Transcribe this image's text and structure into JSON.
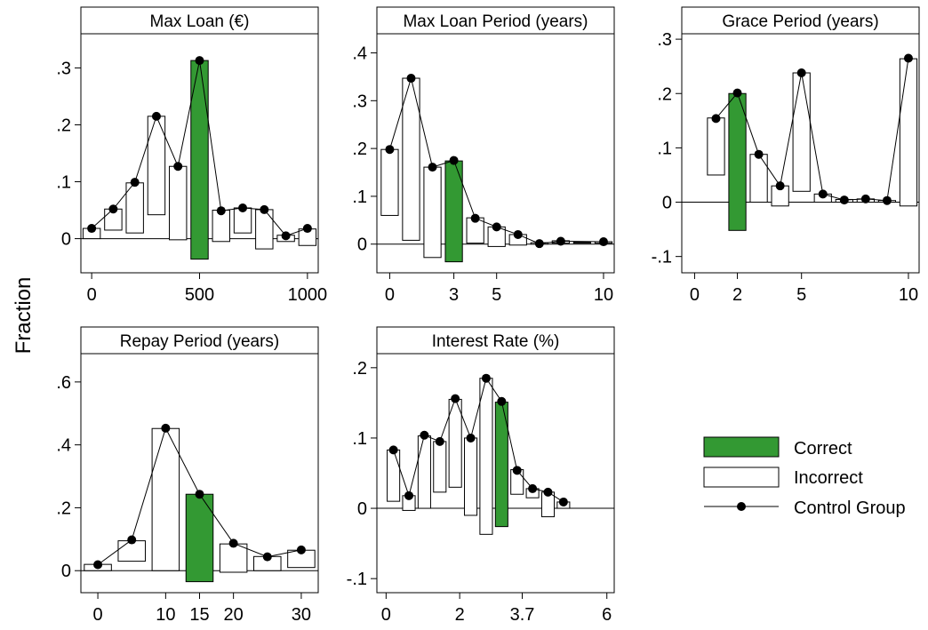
{
  "y_axis_label": "Fraction",
  "legend": {
    "correct": "Correct",
    "incorrect": "Incorrect",
    "control": "Control Group",
    "correct_color": "#339933"
  },
  "chart_data": [
    {
      "type": "bar",
      "title": "Max Loan (€)",
      "xlim": [
        -50,
        1050
      ],
      "ylim": [
        -0.06,
        0.36
      ],
      "xticks": [
        {
          "v": 0,
          "label": "0"
        },
        {
          "v": 500,
          "label": "500"
        },
        {
          "v": 1000,
          "label": "1000"
        }
      ],
      "yticks": [
        {
          "v": 0,
          "label": "0"
        },
        {
          "v": 0.1,
          "label": ".1"
        },
        {
          "v": 0.2,
          "label": ".2"
        },
        {
          "v": 0.3,
          "label": ".3"
        }
      ],
      "bar_width": 80,
      "bars": [
        {
          "x": 0,
          "bottom": 0.0,
          "top": 0.018,
          "correct": false
        },
        {
          "x": 100,
          "bottom": 0.015,
          "top": 0.052,
          "correct": false
        },
        {
          "x": 200,
          "bottom": 0.01,
          "top": 0.098,
          "correct": false
        },
        {
          "x": 300,
          "bottom": 0.042,
          "top": 0.215,
          "correct": false
        },
        {
          "x": 400,
          "bottom": -0.002,
          "top": 0.127,
          "correct": false
        },
        {
          "x": 500,
          "bottom": -0.036,
          "top": 0.313,
          "correct": true
        },
        {
          "x": 600,
          "bottom": -0.005,
          "top": 0.05,
          "correct": false
        },
        {
          "x": 700,
          "bottom": 0.01,
          "top": 0.054,
          "correct": false
        },
        {
          "x": 800,
          "bottom": -0.018,
          "top": 0.051,
          "correct": false
        },
        {
          "x": 900,
          "bottom": -0.005,
          "top": 0.006,
          "correct": false
        },
        {
          "x": 1000,
          "bottom": -0.012,
          "top": 0.017,
          "correct": false
        }
      ],
      "control": [
        {
          "x": 0,
          "y": 0.018
        },
        {
          "x": 100,
          "y": 0.052
        },
        {
          "x": 200,
          "y": 0.099
        },
        {
          "x": 300,
          "y": 0.215
        },
        {
          "x": 400,
          "y": 0.127
        },
        {
          "x": 500,
          "y": 0.313
        },
        {
          "x": 600,
          "y": 0.049
        },
        {
          "x": 700,
          "y": 0.054
        },
        {
          "x": 800,
          "y": 0.051
        },
        {
          "x": 900,
          "y": 0.005
        },
        {
          "x": 1000,
          "y": 0.018
        }
      ]
    },
    {
      "type": "bar",
      "title": "Max Loan Period (years)",
      "xlim": [
        -0.6,
        10.5
      ],
      "ylim": [
        -0.06,
        0.44
      ],
      "xticks": [
        {
          "v": 0,
          "label": "0"
        },
        {
          "v": 3,
          "label": "3"
        },
        {
          "v": 5,
          "label": "5"
        },
        {
          "v": 10,
          "label": "10"
        }
      ],
      "yticks": [
        {
          "v": 0,
          "label": "0"
        },
        {
          "v": 0.1,
          "label": ".1"
        },
        {
          "v": 0.2,
          "label": ".2"
        },
        {
          "v": 0.3,
          "label": ".3"
        },
        {
          "v": 0.4,
          "label": ".4"
        }
      ],
      "bar_width": 0.8,
      "bars": [
        {
          "x": 0,
          "bottom": 0.06,
          "top": 0.198,
          "correct": false
        },
        {
          "x": 1,
          "bottom": 0.008,
          "top": 0.347,
          "correct": false
        },
        {
          "x": 2,
          "bottom": -0.028,
          "top": 0.161,
          "correct": false
        },
        {
          "x": 3,
          "bottom": -0.037,
          "top": 0.174,
          "correct": true
        },
        {
          "x": 4,
          "bottom": 0.002,
          "top": 0.055,
          "correct": false
        },
        {
          "x": 5,
          "bottom": -0.005,
          "top": 0.036,
          "correct": false
        },
        {
          "x": 6,
          "bottom": -0.002,
          "top": 0.02,
          "correct": false
        },
        {
          "x": 7,
          "bottom": 0.0,
          "top": 0.003,
          "correct": false
        },
        {
          "x": 8,
          "bottom": 0.002,
          "top": 0.007,
          "correct": false
        },
        {
          "x": 9,
          "bottom": 0.002,
          "top": 0.004,
          "correct": false
        },
        {
          "x": 10,
          "bottom": 0.002,
          "top": 0.005,
          "correct": false
        }
      ],
      "control": [
        {
          "x": 0,
          "y": 0.198
        },
        {
          "x": 1,
          "y": 0.347
        },
        {
          "x": 2,
          "y": 0.161
        },
        {
          "x": 3,
          "y": 0.175
        },
        {
          "x": 4,
          "y": 0.054
        },
        {
          "x": 5,
          "y": 0.036
        },
        {
          "x": 6,
          "y": 0.02
        },
        {
          "x": 7,
          "y": 0.001
        },
        {
          "x": 8,
          "y": 0.006
        },
        {
          "x": 10,
          "y": 0.005
        }
      ]
    },
    {
      "type": "bar",
      "title": "Grace Period (years)",
      "xlim": [
        -0.6,
        10.5
      ],
      "ylim": [
        -0.13,
        0.31
      ],
      "xticks": [
        {
          "v": 0,
          "label": "0"
        },
        {
          "v": 2,
          "label": "2"
        },
        {
          "v": 5,
          "label": "5"
        },
        {
          "v": 10,
          "label": "10"
        }
      ],
      "yticks": [
        {
          "v": -0.1,
          "label": "-.1"
        },
        {
          "v": 0,
          "label": "0"
        },
        {
          "v": 0.1,
          "label": ".1"
        },
        {
          "v": 0.2,
          "label": ".2"
        },
        {
          "v": 0.3,
          "label": ".3"
        }
      ],
      "bar_width": 0.8,
      "bars": [
        {
          "x": 1,
          "bottom": 0.05,
          "top": 0.155,
          "correct": false
        },
        {
          "x": 2,
          "bottom": -0.052,
          "top": 0.2,
          "correct": true
        },
        {
          "x": 3,
          "bottom": 0.0,
          "top": 0.088,
          "correct": false
        },
        {
          "x": 4,
          "bottom": -0.007,
          "top": 0.03,
          "correct": false
        },
        {
          "x": 5,
          "bottom": 0.02,
          "top": 0.238,
          "correct": false
        },
        {
          "x": 6,
          "bottom": 0.0,
          "top": 0.015,
          "correct": false
        },
        {
          "x": 7,
          "bottom": 0.0,
          "top": 0.005,
          "correct": false
        },
        {
          "x": 8,
          "bottom": 0.0,
          "top": 0.006,
          "correct": false
        },
        {
          "x": 9,
          "bottom": 0.0,
          "top": 0.003,
          "correct": false
        },
        {
          "x": 10,
          "bottom": -0.007,
          "top": 0.264,
          "correct": false
        }
      ],
      "control": [
        {
          "x": 1,
          "y": 0.154
        },
        {
          "x": 2,
          "y": 0.201
        },
        {
          "x": 3,
          "y": 0.088
        },
        {
          "x": 4,
          "y": 0.03
        },
        {
          "x": 5,
          "y": 0.238
        },
        {
          "x": 6,
          "y": 0.015
        },
        {
          "x": 7,
          "y": 0.004
        },
        {
          "x": 8,
          "y": 0.006
        },
        {
          "x": 9,
          "y": 0.003
        },
        {
          "x": 10,
          "y": 0.265
        }
      ]
    },
    {
      "type": "bar",
      "title": "Repay Period (years)",
      "xlim": [
        -2.5,
        32.5
      ],
      "ylim": [
        -0.07,
        0.69
      ],
      "xticks": [
        {
          "v": 0,
          "label": "0"
        },
        {
          "v": 10,
          "label": "10"
        },
        {
          "v": 15,
          "label": "15"
        },
        {
          "v": 20,
          "label": "20"
        },
        {
          "v": 30,
          "label": "30"
        }
      ],
      "yticks": [
        {
          "v": 0,
          "label": "0"
        },
        {
          "v": 0.2,
          "label": ".2"
        },
        {
          "v": 0.4,
          "label": ".4"
        },
        {
          "v": 0.6,
          "label": ".6"
        }
      ],
      "bar_width": 4,
      "bars": [
        {
          "x": 0,
          "bottom": 0.0,
          "top": 0.02,
          "correct": false
        },
        {
          "x": 5,
          "bottom": 0.03,
          "top": 0.095,
          "correct": false
        },
        {
          "x": 10,
          "bottom": 0.0,
          "top": 0.452,
          "correct": false
        },
        {
          "x": 15,
          "bottom": -0.035,
          "top": 0.243,
          "correct": true
        },
        {
          "x": 20,
          "bottom": -0.005,
          "top": 0.085,
          "correct": false
        },
        {
          "x": 25,
          "bottom": 0.0,
          "top": 0.045,
          "correct": false
        },
        {
          "x": 30,
          "bottom": 0.01,
          "top": 0.065,
          "correct": false
        }
      ],
      "control": [
        {
          "x": 0,
          "y": 0.019
        },
        {
          "x": 5,
          "y": 0.098
        },
        {
          "x": 10,
          "y": 0.453
        },
        {
          "x": 15,
          "y": 0.243
        },
        {
          "x": 20,
          "y": 0.087
        },
        {
          "x": 25,
          "y": 0.044
        },
        {
          "x": 30,
          "y": 0.066
        }
      ]
    },
    {
      "type": "bar",
      "title": "Interest Rate (%)",
      "xlim": [
        -0.25,
        6.2
      ],
      "ylim": [
        -0.12,
        0.22
      ],
      "xticks": [
        {
          "v": 0,
          "label": "0"
        },
        {
          "v": 2,
          "label": "2"
        },
        {
          "v": 3.7,
          "label": "3.7"
        },
        {
          "v": 6,
          "label": "6"
        }
      ],
      "yticks": [
        {
          "v": -0.1,
          "label": "-.1"
        },
        {
          "v": 0,
          "label": "0"
        },
        {
          "v": 0.1,
          "label": ".1"
        },
        {
          "v": 0.2,
          "label": ".2"
        }
      ],
      "bar_width": 0.34,
      "bars": [
        {
          "x": 0.2,
          "bottom": 0.01,
          "top": 0.083,
          "correct": false
        },
        {
          "x": 0.62,
          "bottom": -0.003,
          "top": 0.018,
          "correct": false
        },
        {
          "x": 1.04,
          "bottom": 0.0,
          "top": 0.103,
          "correct": false
        },
        {
          "x": 1.46,
          "bottom": 0.023,
          "top": 0.095,
          "correct": false
        },
        {
          "x": 1.88,
          "bottom": 0.03,
          "top": 0.155,
          "correct": false
        },
        {
          "x": 2.3,
          "bottom": -0.01,
          "top": 0.1,
          "correct": false
        },
        {
          "x": 2.72,
          "bottom": -0.037,
          "top": 0.185,
          "correct": false
        },
        {
          "x": 3.14,
          "bottom": -0.026,
          "top": 0.151,
          "correct": true
        },
        {
          "x": 3.56,
          "bottom": 0.02,
          "top": 0.055,
          "correct": false
        },
        {
          "x": 3.98,
          "bottom": 0.015,
          "top": 0.028,
          "correct": false
        },
        {
          "x": 4.4,
          "bottom": -0.012,
          "top": 0.023,
          "correct": false
        },
        {
          "x": 4.82,
          "bottom": 0.0,
          "top": 0.009,
          "correct": false
        }
      ],
      "control": [
        {
          "x": 0.2,
          "y": 0.083
        },
        {
          "x": 0.62,
          "y": 0.018
        },
        {
          "x": 1.04,
          "y": 0.104
        },
        {
          "x": 1.46,
          "y": 0.095
        },
        {
          "x": 1.88,
          "y": 0.156
        },
        {
          "x": 2.3,
          "y": 0.1
        },
        {
          "x": 2.72,
          "y": 0.185
        },
        {
          "x": 3.14,
          "y": 0.152
        },
        {
          "x": 3.56,
          "y": 0.054
        },
        {
          "x": 3.98,
          "y": 0.028
        },
        {
          "x": 4.4,
          "y": 0.023
        },
        {
          "x": 4.82,
          "y": 0.009
        }
      ]
    }
  ]
}
